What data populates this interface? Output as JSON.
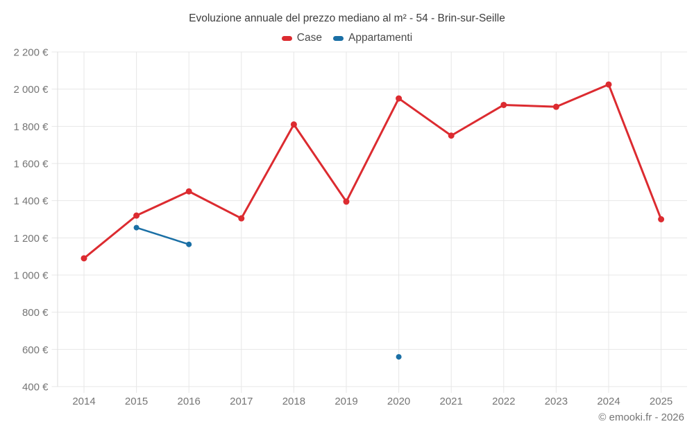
{
  "chart_data": {
    "type": "line",
    "title": "Evoluzione annuale del prezzo mediano al m² - 54 - Brin-sur-Seille",
    "x": [
      "2014",
      "2015",
      "2016",
      "2017",
      "2018",
      "2019",
      "2020",
      "2021",
      "2022",
      "2023",
      "2024",
      "2025"
    ],
    "series": [
      {
        "name": "Case",
        "color": "#dc2b30",
        "values": [
          1090,
          1320,
          1450,
          1305,
          1810,
          1395,
          1950,
          1750,
          1915,
          1905,
          2025,
          1300
        ]
      },
      {
        "name": "Appartamenti",
        "color": "#1a6fa5",
        "values": [
          null,
          1255,
          1165,
          null,
          null,
          null,
          560,
          null,
          null,
          null,
          null,
          null
        ]
      }
    ],
    "ylim": [
      400,
      2200
    ],
    "ytick_step": 200,
    "yticks": [
      {
        "value": 400,
        "label": "400 €"
      },
      {
        "value": 600,
        "label": "600 €"
      },
      {
        "value": 800,
        "label": "800 €"
      },
      {
        "value": 1000,
        "label": "1 000 €"
      },
      {
        "value": 1200,
        "label": "1 200 €"
      },
      {
        "value": 1400,
        "label": "1 400 €"
      },
      {
        "value": 1600,
        "label": "1 600 €"
      },
      {
        "value": 1800,
        "label": "1 800 €"
      },
      {
        "value": 2000,
        "label": "2 000 €"
      },
      {
        "value": 2200,
        "label": "2 200 €"
      }
    ],
    "grid": true,
    "legend_position": "top",
    "grid_color": "#e7e7e7",
    "axis_line_color": "#dedede",
    "tick_label_color": "#757575",
    "title_color": "#3d3d3d"
  },
  "footer": {
    "credit": "© emooki.fr - 2026"
  }
}
